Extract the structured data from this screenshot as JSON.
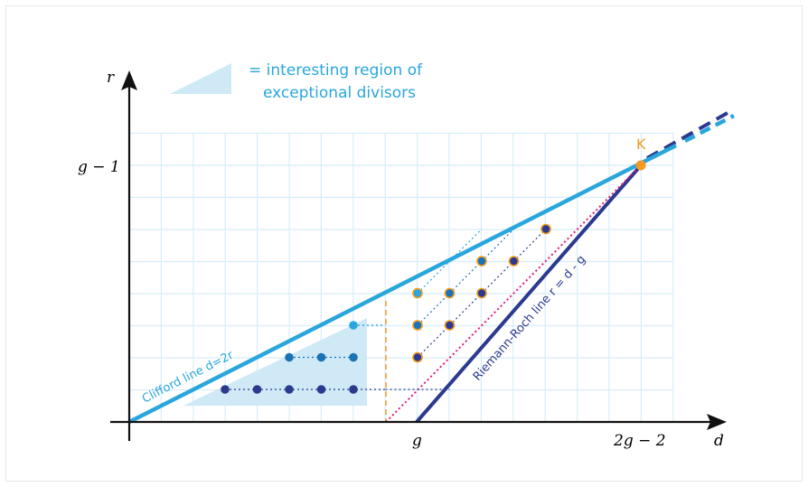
{
  "legend": {
    "line1": "= interesting region of",
    "line2": "exceptional divisors"
  },
  "axes": {
    "x_label": "d",
    "y_label": "r",
    "x_tick_g": "g",
    "x_tick_2g2": "2g − 2",
    "y_tick_g1": "g − 1"
  },
  "lines": {
    "clifford_label": "Clifford line d=2r",
    "riemann_roch_label": "Riemann-Roch line r = d - g"
  },
  "point_label_k": "K",
  "colors": {
    "light_blue": "#2aa6dc",
    "region_fill": "#cfe9f7",
    "dark_navy": "#2b3a8f",
    "orange": "#f39a1f",
    "magenta": "#e2197a",
    "grid": "#d8ecf8",
    "dot_mid_blue": "#1a73b6"
  }
}
